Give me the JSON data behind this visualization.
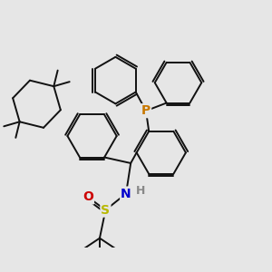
{
  "bg_color": "#e6e6e6",
  "bond_color": "#111111",
  "bond_width": 1.4,
  "dbo": 0.04,
  "P_color": "#c87800",
  "N_color": "#0000cc",
  "S_color": "#b8b800",
  "O_color": "#cc0000",
  "H_color": "#888888",
  "fig_w": 3.0,
  "fig_h": 3.0,
  "dpi": 100,
  "xlim": [
    -2.6,
    2.0
  ],
  "ylim": [
    -1.6,
    2.2
  ]
}
